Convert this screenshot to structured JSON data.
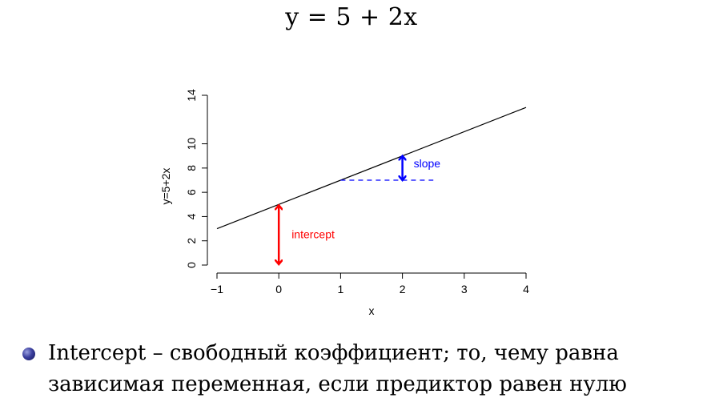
{
  "slide": {
    "title": "y = 5 + 2x",
    "bullet": "Intercept – свободный коэффициент; то, чему равна зависимая переменная, если предиктор равен нулю"
  },
  "chart_data": {
    "type": "line",
    "xlabel": "x",
    "ylabel": "y=5+2x",
    "xlim": [
      -1,
      4
    ],
    "ylim": [
      0,
      14
    ],
    "x_ticks": [
      -1,
      0,
      1,
      2,
      3,
      4
    ],
    "x_tick_labels": [
      "−1",
      "0",
      "1",
      "2",
      "3",
      "4"
    ],
    "y_ticks": [
      0,
      2,
      4,
      6,
      8,
      10,
      14
    ],
    "y_tick_labels": [
      "0",
      "2",
      "4",
      "6",
      "8",
      "10",
      "14"
    ],
    "grid": false,
    "series": [
      {
        "x": [
          -1,
          4
        ],
        "y": [
          3,
          13
        ],
        "color": "#000000"
      }
    ],
    "annotations": {
      "intercept": {
        "label": "intercept",
        "x": 0,
        "y_from": 0,
        "y_to": 5,
        "color": "#ff0000"
      },
      "slope": {
        "label": "slope",
        "x": 2,
        "y_from": 7,
        "y_to": 9,
        "color": "#0000ff"
      },
      "dashed_guide": {
        "x_from": 1,
        "x_to": 2.5,
        "y": 7,
        "color": "#0000ff"
      }
    }
  }
}
